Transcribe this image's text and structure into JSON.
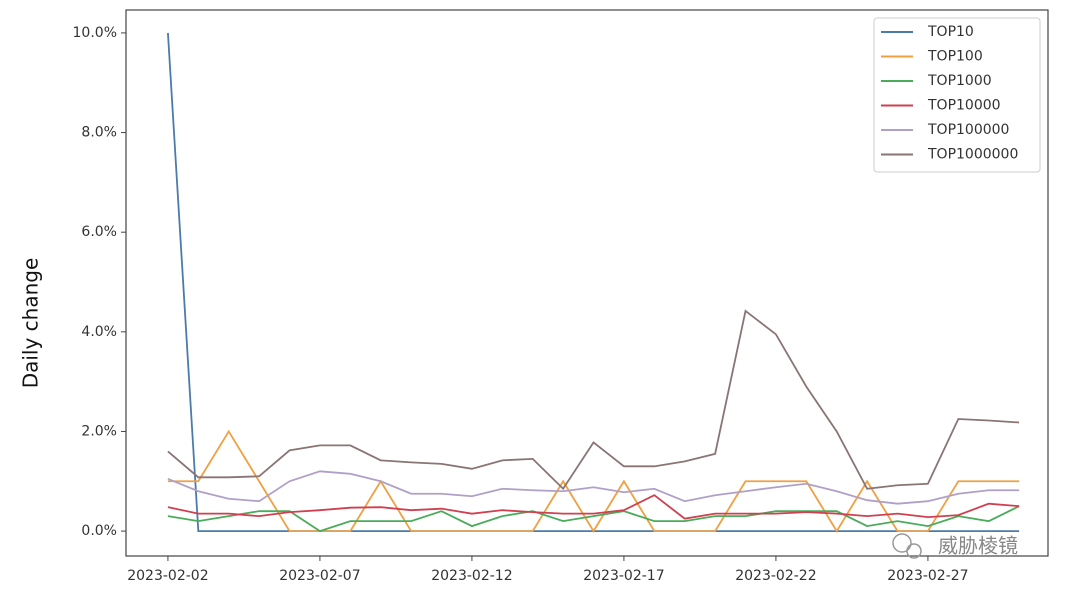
{
  "chart_data": {
    "type": "line",
    "ylabel": "Daily change",
    "watermark": "威胁棱镜",
    "x": [
      "2023-02-02",
      "2023-02-03",
      "2023-02-04",
      "2023-02-05",
      "2023-02-06",
      "2023-02-07",
      "2023-02-08",
      "2023-02-09",
      "2023-02-10",
      "2023-02-11",
      "2023-02-12",
      "2023-02-13",
      "2023-02-14",
      "2023-02-15",
      "2023-02-16",
      "2023-02-17",
      "2023-02-18",
      "2023-02-19",
      "2023-02-20",
      "2023-02-21",
      "2023-02-22",
      "2023-02-23",
      "2023-02-24",
      "2023-02-25",
      "2023-02-26",
      "2023-02-27",
      "2023-02-28",
      "2023-03-01",
      "2023-03-02"
    ],
    "xlim": [
      "2023-01-31T14:54",
      "2023-03-02T22:48"
    ],
    "xticks": [
      "2023-02-02",
      "2023-02-07",
      "2023-02-12",
      "2023-02-17",
      "2023-02-22",
      "2023-02-27"
    ],
    "ylim": [
      -0.5,
      10.46
    ],
    "yticks": [
      {
        "value": 0,
        "label": "0.0%"
      },
      {
        "value": 2,
        "label": "2.0%"
      },
      {
        "value": 4,
        "label": "4.0%"
      },
      {
        "value": 6,
        "label": "6.0%"
      },
      {
        "value": 8,
        "label": "8.0%"
      },
      {
        "value": 10,
        "label": "10.0%"
      }
    ],
    "legend": "upper right",
    "series": [
      {
        "name": "TOP10",
        "color": "#4a7bab",
        "values": [
          10,
          0,
          0,
          0,
          0,
          0,
          0,
          0,
          0,
          0,
          0,
          0,
          0,
          0,
          0,
          0,
          0,
          0,
          0,
          0,
          0,
          0,
          0,
          0,
          0,
          0,
          0,
          0,
          0
        ]
      },
      {
        "name": "TOP100",
        "color": "#f0a040",
        "values": [
          1,
          1,
          2,
          1,
          0,
          0,
          0,
          1,
          0,
          0,
          0,
          0,
          0,
          1,
          0,
          1,
          0,
          0,
          0,
          1,
          1,
          1,
          0,
          1,
          0,
          0,
          1,
          1,
          1
        ]
      },
      {
        "name": "TOP1000",
        "color": "#4aab5a",
        "values": [
          0.3,
          0.2,
          0.3,
          0.4,
          0.4,
          0,
          0.2,
          0.2,
          0.2,
          0.4,
          0.1,
          0.3,
          0.4,
          0.2,
          0.3,
          0.4,
          0.2,
          0.2,
          0.3,
          0.3,
          0.4,
          0.4,
          0.4,
          0.1,
          0.2,
          0.1,
          0.3,
          0.2,
          0.5
        ]
      },
      {
        "name": "TOP10000",
        "color": "#d04050",
        "values": [
          0.48,
          0.35,
          0.35,
          0.3,
          0.38,
          0.42,
          0.47,
          0.48,
          0.42,
          0.45,
          0.35,
          0.42,
          0.38,
          0.35,
          0.35,
          0.42,
          0.72,
          0.25,
          0.35,
          0.35,
          0.35,
          0.38,
          0.35,
          0.3,
          0.35,
          0.28,
          0.32,
          0.55,
          0.5
        ]
      },
      {
        "name": "TOP100000",
        "color": "#b0a0c8",
        "values": [
          1.05,
          0.8,
          0.65,
          0.6,
          1.0,
          1.2,
          1.15,
          1.0,
          0.75,
          0.75,
          0.7,
          0.85,
          0.82,
          0.8,
          0.88,
          0.78,
          0.85,
          0.6,
          0.72,
          0.8,
          0.88,
          0.95,
          0.8,
          0.62,
          0.55,
          0.6,
          0.75,
          0.82,
          0.82
        ]
      },
      {
        "name": "TOP1000000",
        "color": "#8a7474",
        "values": [
          1.6,
          1.08,
          1.08,
          1.1,
          1.62,
          1.72,
          1.72,
          1.42,
          1.38,
          1.35,
          1.25,
          1.42,
          1.45,
          0.85,
          1.78,
          1.3,
          1.3,
          1.4,
          1.55,
          4.42,
          3.95,
          2.9,
          2.0,
          0.85,
          0.92,
          0.95,
          2.25,
          2.22,
          2.18
        ]
      }
    ]
  }
}
